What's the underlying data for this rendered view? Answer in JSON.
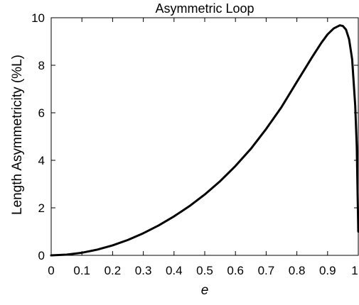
{
  "chart_data": {
    "type": "line",
    "title": "Asymmetric Loop",
    "xlabel": "e",
    "ylabel": "Length Asymmetricity (%L)",
    "xlim": [
      0,
      1
    ],
    "ylim": [
      0,
      10
    ],
    "x_ticks": [
      "0",
      "0.1",
      "0.2",
      "0.3",
      "0.4",
      "0.5",
      "0.6",
      "0.7",
      "0.8",
      "0.9",
      "1"
    ],
    "y_ticks": [
      "0",
      "2",
      "4",
      "6",
      "8",
      "10"
    ],
    "grid": false,
    "line_color": "#000000",
    "series": [
      {
        "x": [
          0,
          0.05,
          0.1,
          0.15,
          0.2,
          0.25,
          0.3,
          0.35,
          0.4,
          0.45,
          0.5,
          0.55,
          0.6,
          0.65,
          0.7,
          0.75,
          0.8,
          0.85,
          0.88,
          0.9,
          0.92,
          0.94,
          0.95,
          0.96,
          0.97,
          0.98,
          0.99,
          0.995,
          1.0
        ],
        "y": [
          0,
          0.03,
          0.11,
          0.24,
          0.42,
          0.65,
          0.93,
          1.26,
          1.64,
          2.07,
          2.56,
          3.12,
          3.76,
          4.48,
          5.32,
          6.24,
          7.3,
          8.35,
          8.95,
          9.3,
          9.55,
          9.68,
          9.65,
          9.5,
          9.1,
          8.25,
          6.3,
          4.6,
          1.0
        ]
      }
    ]
  }
}
